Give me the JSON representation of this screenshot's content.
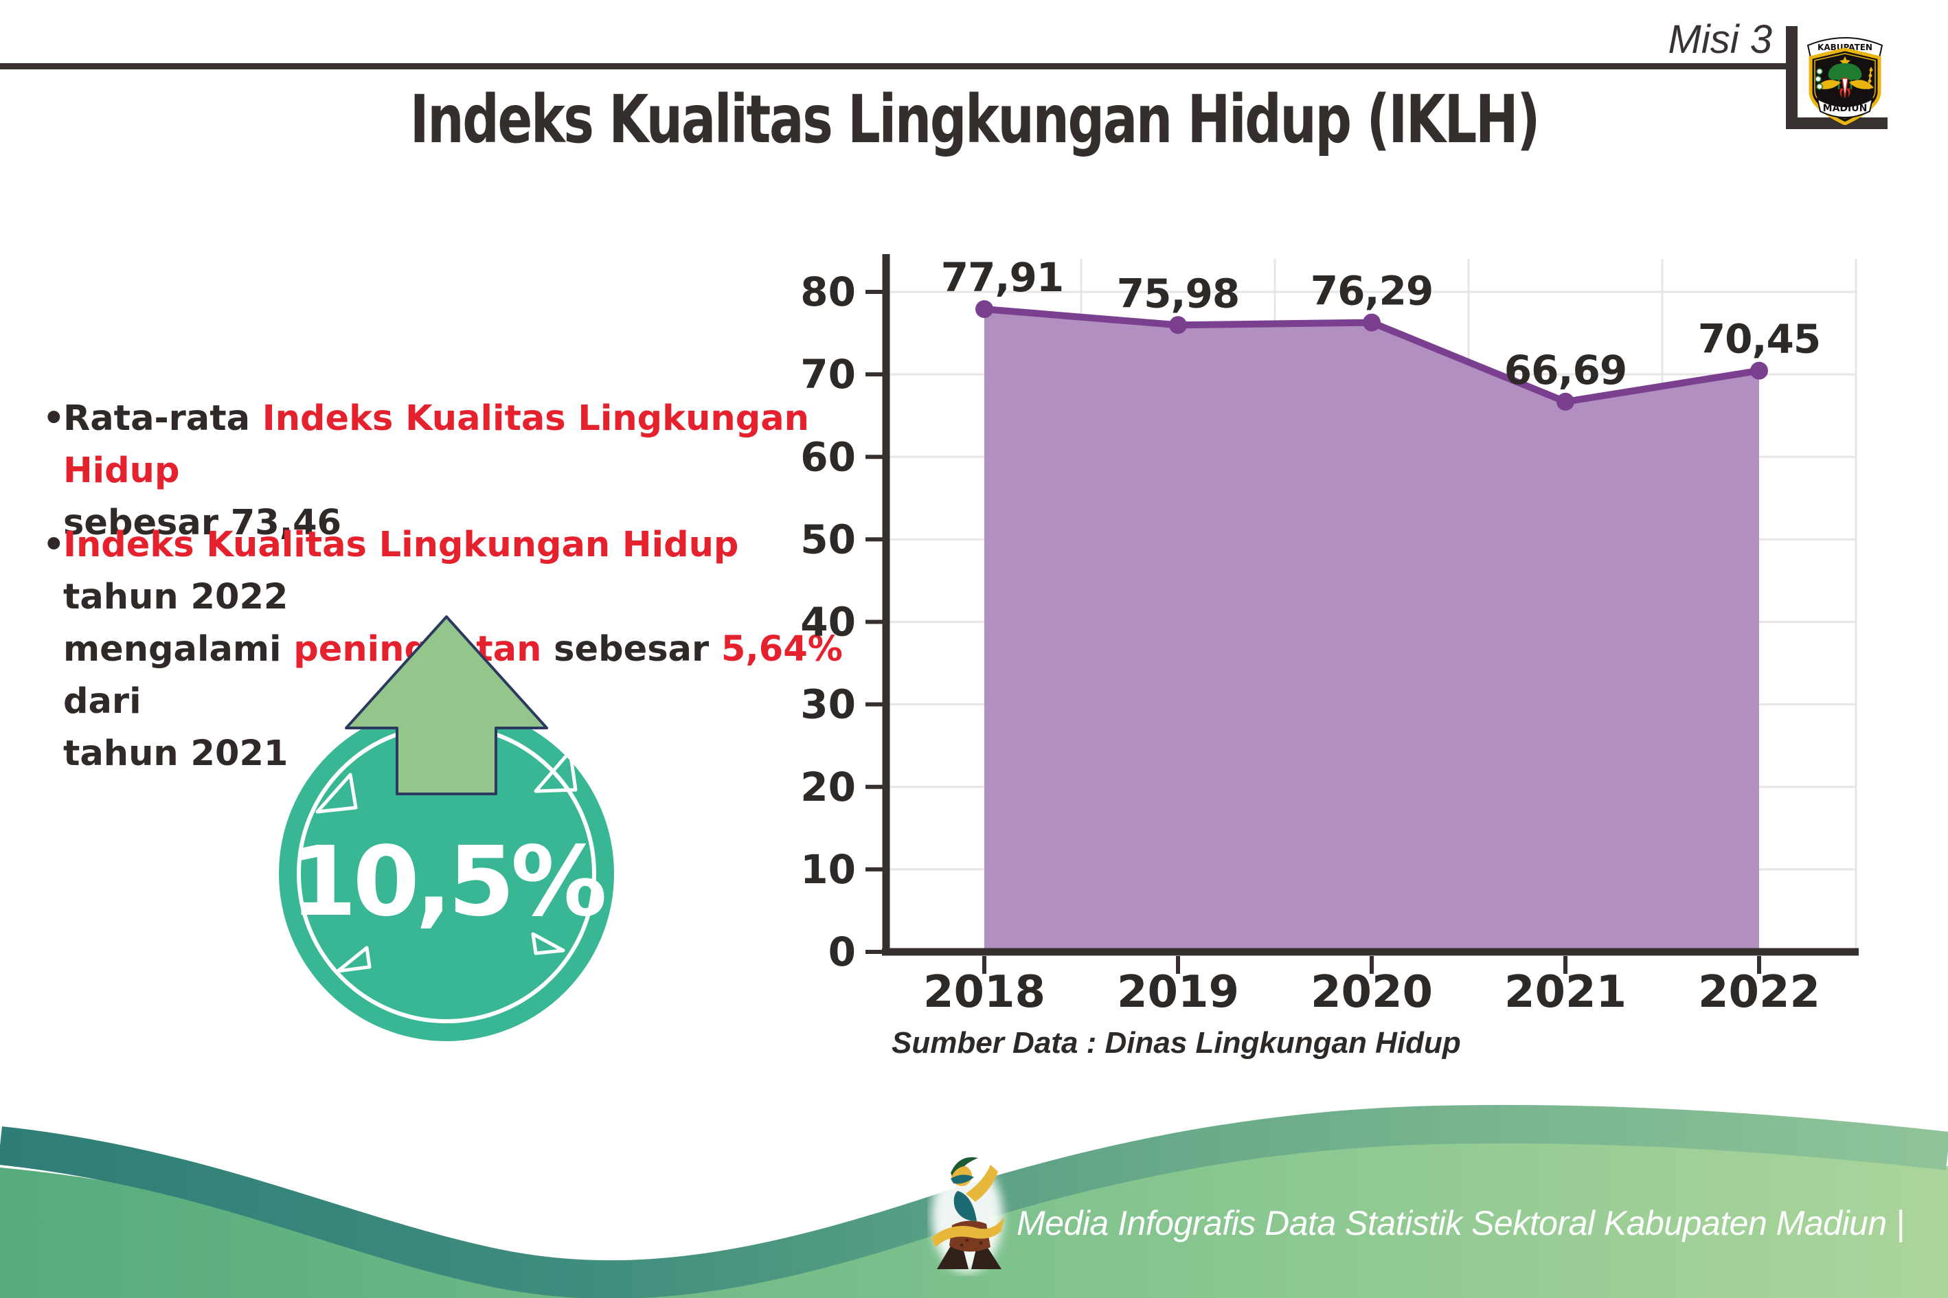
{
  "header": {
    "misi_label": "Misi 3",
    "title": "Indeks Kualitas Lingkungan Hidup (IKLH)",
    "logo": {
      "top_banner": "KABUPATEN",
      "bottom_banner": "MADIUN"
    }
  },
  "bullets": {
    "dot": "•",
    "items": [
      {
        "lines": [
          [
            {
              "text": "Rata-rata ",
              "red": false
            },
            {
              "text": "Indeks Kualitas Lingkungan Hidup",
              "red": true
            }
          ],
          [
            {
              "text": "sebesar 73,46",
              "red": false
            }
          ]
        ]
      },
      {
        "lines": [
          [
            {
              "text": "Indeks Kualitas Lingkungan Hidup",
              "red": true
            },
            {
              "text": " tahun 2022",
              "red": false
            }
          ],
          [
            {
              "text": "mengalami ",
              "red": false
            },
            {
              "text": "peningkatan",
              "red": true
            },
            {
              "text": " sebesar ",
              "red": false
            },
            {
              "text": "5,64%",
              "red": true
            },
            {
              "text": " dari",
              "red": false
            }
          ],
          [
            {
              "text": "tahun 2021",
              "red": false
            }
          ]
        ]
      }
    ]
  },
  "badge": {
    "value": "10,5%"
  },
  "chart_data": {
    "type": "area",
    "categories": [
      "2018",
      "2019",
      "2020",
      "2021",
      "2022"
    ],
    "series": [
      {
        "name": "IKLH",
        "values": [
          77.91,
          75.98,
          76.29,
          66.69,
          70.45
        ]
      }
    ],
    "value_labels": [
      "77,91",
      "75,98",
      "76,29",
      "66,69",
      "70,45"
    ],
    "title": "",
    "xlabel": "",
    "ylabel": "",
    "ylim": [
      0,
      80
    ],
    "ytick_step": 10,
    "grid": true,
    "legend": "none",
    "source": "Sumber Data : Dinas Lingkungan Hidup",
    "colors": {
      "area_fill": "#b18fc1",
      "line": "#7b3f8f",
      "label": "#2d2927",
      "axis": "#35302d",
      "grid": "#e8e6e5"
    }
  },
  "footer": {
    "caption": "Media Infografis Data Statistik Sektoral Kabupaten Madiun |"
  },
  "palette": {
    "accent_red": "#e6212e",
    "text_dark": "#2f2927",
    "title_dark": "#342e2c",
    "badge_teal": "#39b795",
    "arrow_green": "#94c68c",
    "arrow_outline": "#2b3a5e",
    "wave_teal": "#2e7d77",
    "wave_sage": "#8fc498",
    "wave_green_dark": "#56ab7c",
    "wave_green_light": "#abd59b"
  }
}
